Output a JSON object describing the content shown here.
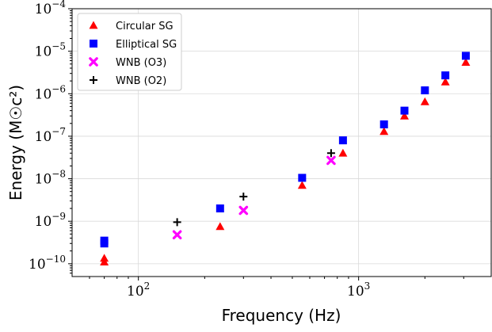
{
  "chart_data": {
    "type": "scatter",
    "xlabel": "Frequency (Hz)",
    "ylabel": "Energy (M☉c²)",
    "xscale": "log",
    "yscale": "log",
    "xlim": [
      50,
      4000
    ],
    "ylim": [
      5e-11,
      0.0001
    ],
    "grid": true,
    "legend_position": "top-left",
    "x_ticks": [
      {
        "value": 100,
        "base": "10",
        "exp": "2"
      },
      {
        "value": 1000,
        "base": "10",
        "exp": "3"
      }
    ],
    "y_ticks": [
      {
        "value": 1e-10,
        "base": "10",
        "exp": "−10"
      },
      {
        "value": 1e-09,
        "base": "10",
        "exp": "−9"
      },
      {
        "value": 1e-08,
        "base": "10",
        "exp": "−8"
      },
      {
        "value": 1e-07,
        "base": "10",
        "exp": "−7"
      },
      {
        "value": 1e-06,
        "base": "10",
        "exp": "−6"
      },
      {
        "value": 1e-05,
        "base": "10",
        "exp": "−5"
      },
      {
        "value": 0.0001,
        "base": "10",
        "exp": "−4"
      }
    ],
    "series": [
      {
        "name": "Circular SG",
        "marker": "triangle",
        "color": "#ff0000",
        "points": [
          {
            "x": 70,
            "y": 1.1e-10
          },
          {
            "x": 70,
            "y": 1.35e-10
          },
          {
            "x": 235,
            "y": 7.5e-10
          },
          {
            "x": 554,
            "y": 7e-09
          },
          {
            "x": 849,
            "y": 4e-08
          },
          {
            "x": 1304,
            "y": 1.3e-07
          },
          {
            "x": 1615,
            "y": 3e-07
          },
          {
            "x": 2000,
            "y": 6.5e-07
          },
          {
            "x": 2477,
            "y": 1.9e-06
          },
          {
            "x": 3067,
            "y": 5.5e-06
          }
        ]
      },
      {
        "name": "Elliptical SG",
        "marker": "square",
        "color": "#0000ff",
        "points": [
          {
            "x": 70,
            "y": 3e-10
          },
          {
            "x": 70,
            "y": 3.5e-10
          },
          {
            "x": 235,
            "y": 2e-09
          },
          {
            "x": 554,
            "y": 1.05e-08
          },
          {
            "x": 849,
            "y": 8e-08
          },
          {
            "x": 1304,
            "y": 1.9e-07
          },
          {
            "x": 1615,
            "y": 4e-07
          },
          {
            "x": 2000,
            "y": 1.2e-06
          },
          {
            "x": 2477,
            "y": 2.7e-06
          },
          {
            "x": 3067,
            "y": 7.8e-06
          }
        ]
      },
      {
        "name": "WNB (O3)",
        "marker": "x",
        "color": "#ff00ff",
        "points": [
          {
            "x": 150,
            "y": 4.8e-10
          },
          {
            "x": 300,
            "y": 1.8e-09
          },
          {
            "x": 750,
            "y": 2.7e-08
          }
        ]
      },
      {
        "name": "WNB (O2)",
        "marker": "plus",
        "color": "#000000",
        "points": [
          {
            "x": 150,
            "y": 9.5e-10
          },
          {
            "x": 300,
            "y": 3.8e-09
          },
          {
            "x": 750,
            "y": 4e-08
          }
        ]
      }
    ]
  }
}
